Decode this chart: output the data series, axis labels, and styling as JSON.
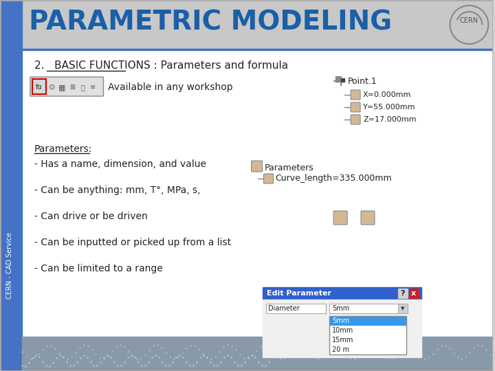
{
  "title": "PARAMETRIC MODELING",
  "title_color": "#1a5fa8",
  "title_bg_color": "#c8c8c8",
  "subtitle": "2.   BASIC FUNCTIONS : Parameters and formula",
  "content_bg": "#ffffff",
  "left_bar_color": "#4472c4",
  "left_bar_text": "CERN - CAD Service",
  "available_text": "Available in any workshop",
  "parameters_label": "Parameters:",
  "bullets": [
    "- Has a name, dimension, and value",
    "- Can be anything: mm, T°, MPa, s,",
    "- Can drive or be driven",
    "- Can be inputted or picked up from a list",
    "- Can be limited to a range"
  ],
  "right_tree_lines": [
    "Point.1",
    "X=0.000mm",
    "Y=55.000mm",
    "Z=17.000mm"
  ],
  "param_tree_lines": [
    "Parameters",
    "Curve_length=335.000mm"
  ],
  "edit_param_title": "Edit Parameter",
  "edit_param_field": "Diameter",
  "edit_param_value": "5mm",
  "edit_param_list": [
    "5mm",
    "10mm",
    "15mm",
    "20 m"
  ]
}
